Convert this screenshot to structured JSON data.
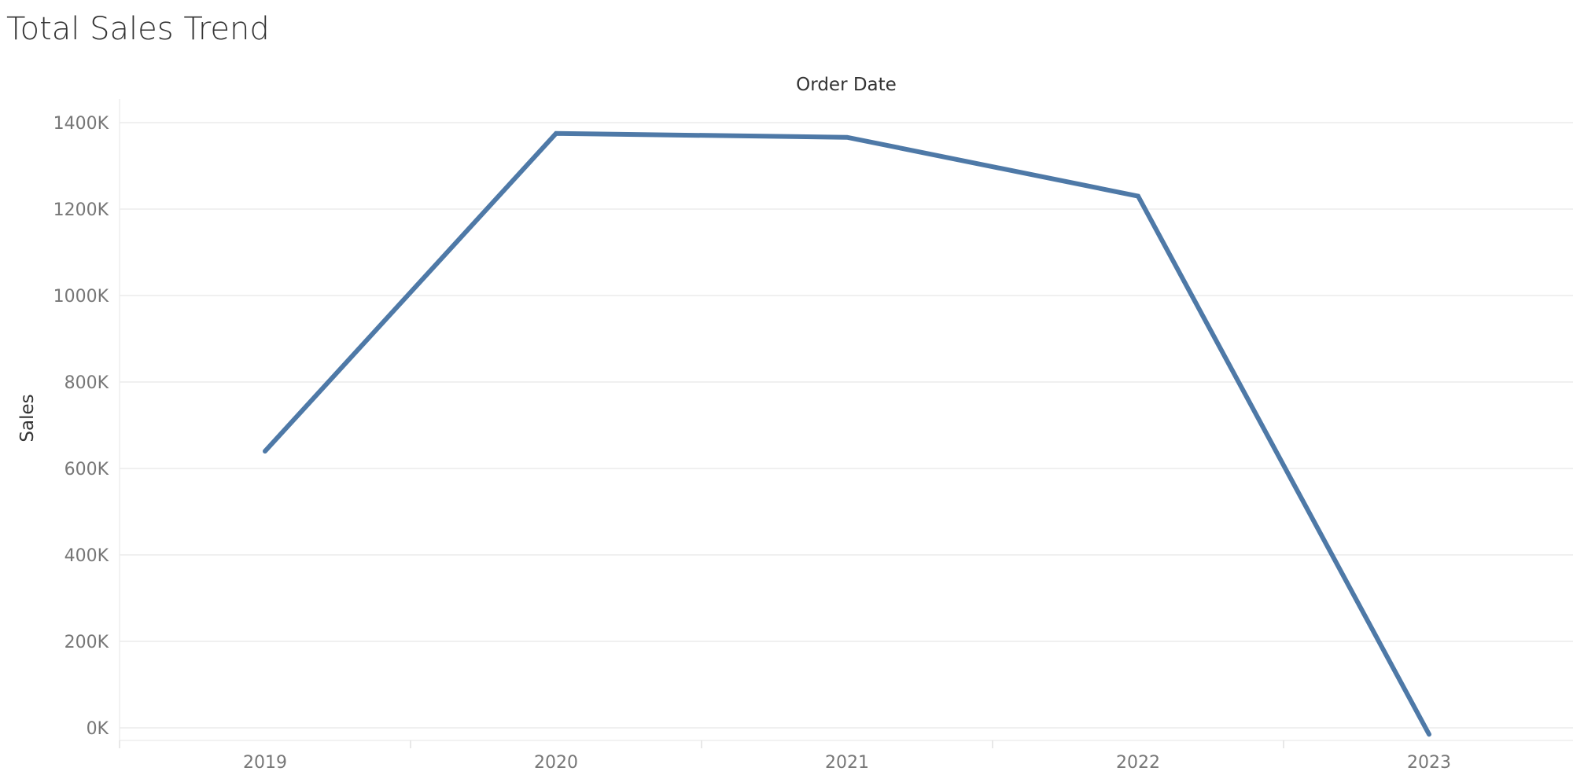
{
  "chart_data": {
    "type": "line",
    "title": "Total Sales Trend",
    "xlabel": "Order Date",
    "ylabel": "Sales",
    "categories": [
      "2019",
      "2020",
      "2021",
      "2022",
      "2023"
    ],
    "series": [
      {
        "values": [
          640000,
          1375000,
          1366000,
          1230000,
          -15000
        ],
        "color": "#4e79a7"
      }
    ],
    "ylim": [
      -30000,
      1450000
    ],
    "yticks": [
      0,
      200000,
      400000,
      600000,
      800000,
      1000000,
      1200000,
      1400000
    ],
    "ytick_labels": [
      "0K",
      "200K",
      "400K",
      "600K",
      "800K",
      "1000K",
      "1200K",
      "1400K"
    ],
    "grid": true,
    "gridline_color": "#ebebeb",
    "legend": "none"
  }
}
